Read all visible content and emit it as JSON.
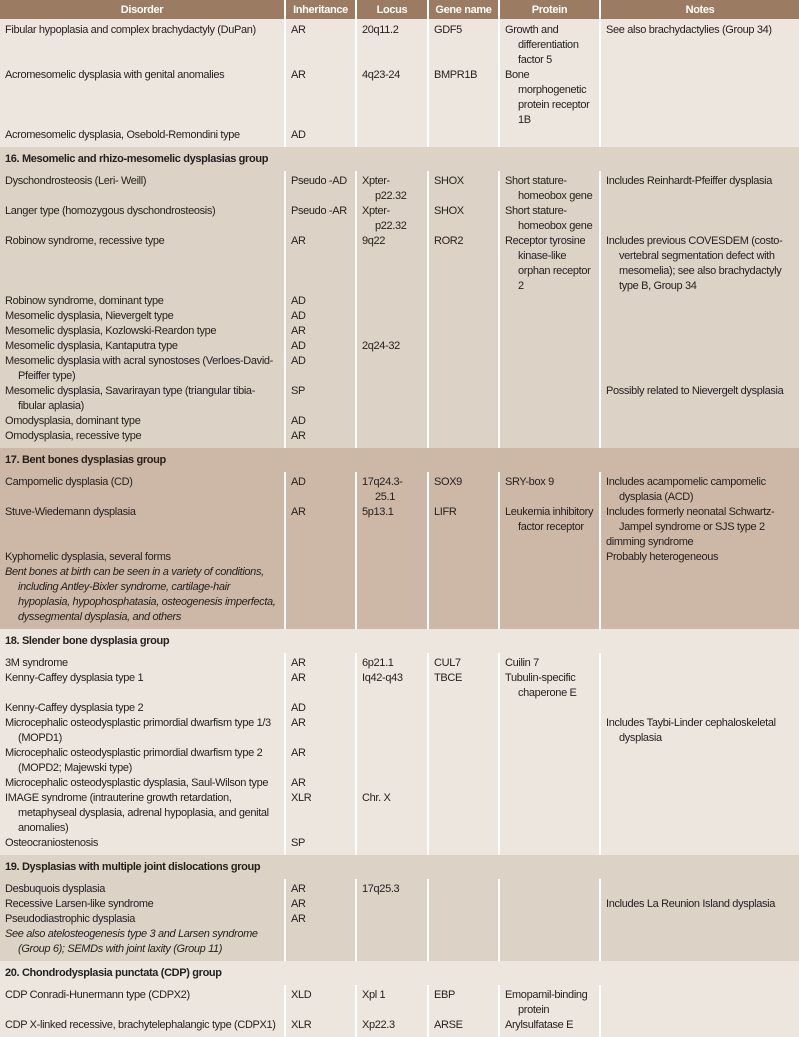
{
  "columns": [
    "Disorder",
    "Inheritance",
    "Locus",
    "Gene name",
    "Protein",
    "Notes"
  ],
  "colors": {
    "header": "#9b7b62",
    "light": "#ede6df",
    "mid": "#ddd2c6",
    "dark": "#cdb8a8"
  },
  "sections": [
    {
      "title": "",
      "shade": "light",
      "rows": [
        {
          "disorder": "Fibular hypoplasia and complex brachydactyly (DuPan)",
          "inheritance": "AR",
          "locus": "20q11.2",
          "gene": "GDF5",
          "protein": "Growth and differentiation factor 5",
          "notes": "See also brachydactylies (Group 34)"
        },
        {
          "disorder": "Acromesomelic dysplasia with genital anomalies",
          "inheritance": "AR",
          "locus": "4q23-24",
          "gene": "BMPR1B",
          "protein": "Bone morphogenetic protein receptor 1B",
          "notes": ""
        },
        {
          "disorder": "Acromesomelic dysplasia, Osebold-Remondini type",
          "inheritance": "AD",
          "locus": "",
          "gene": "",
          "protein": "",
          "notes": ""
        }
      ]
    },
    {
      "title": "16. Mesomelic and rhizo-mesomelic dysplasias group",
      "shade": "mid",
      "rows": [
        {
          "disorder": "Dyschondrosteosis (Leri- Weill)",
          "inheritance": "Pseudo -AD",
          "locus": "Xpter- p22.32",
          "gene": "SHOX",
          "protein": "Short stature- homeobox gene",
          "notes": "Includes Reinhardt-Pfeiffer dysplasia"
        },
        {
          "disorder": "Langer type (homozygous dyschondrosteosis)",
          "inheritance": "Pseudo -AR",
          "locus": "Xpter- p22.32",
          "gene": "SHOX",
          "protein": "Short stature- homeobox gene",
          "notes": ""
        },
        {
          "disorder": "Robinow syndrome, recessive type",
          "inheritance": "AR",
          "locus": "9q22",
          "gene": "ROR2",
          "protein": "Receptor tyrosine kinase-like orphan receptor 2",
          "notes": "Includes previous COVESDEM (costo-vertebral segmentation defect with mesomelia); see also brachydactyly type B, Group 34"
        },
        {
          "disorder": "Robinow syndrome, dominant type",
          "inheritance": "AD",
          "locus": "",
          "gene": "",
          "protein": "",
          "notes": ""
        },
        {
          "disorder": "Mesomelic dysplasia, Nievergelt type",
          "inheritance": "AD",
          "locus": "",
          "gene": "",
          "protein": "",
          "notes": ""
        },
        {
          "disorder": "Mesomelic dysplasia, Kozlowski-Reardon type",
          "inheritance": "AR",
          "locus": "",
          "gene": "",
          "protein": "",
          "notes": ""
        },
        {
          "disorder": "Mesomelic dysplasia, Kantaputra type",
          "inheritance": "AD",
          "locus": "2q24-32",
          "gene": "",
          "protein": "",
          "notes": ""
        },
        {
          "disorder": "Mesomelic dysplasia with acral synostoses (Verloes-David-Pfeiffer type)",
          "inheritance": "AD",
          "locus": "",
          "gene": "",
          "protein": "",
          "notes": ""
        },
        {
          "disorder": "Mesomelic dysplasia, Savarirayan type (triangular tibia-fibular aplasia)",
          "inheritance": "SP",
          "locus": "",
          "gene": "",
          "protein": "",
          "notes": "Possibly related to Nievergelt dysplasia"
        },
        {
          "disorder": "Omodysplasia, dominant type",
          "inheritance": "AD",
          "locus": "",
          "gene": "",
          "protein": "",
          "notes": ""
        },
        {
          "disorder": "Omodysplasia, recessive type",
          "inheritance": "AR",
          "locus": "",
          "gene": "",
          "protein": "",
          "notes": ""
        }
      ]
    },
    {
      "title": "17. Bent bones dysplasias group",
      "shade": "dark",
      "rows": [
        {
          "disorder": "Campomelic dysplasia (CD)",
          "inheritance": "AD",
          "locus": "17q24.3- 25.1",
          "gene": "SOX9",
          "protein": "SRY-box 9",
          "notes": "Includes acampomelic campomelic dysplasia (ACD)"
        },
        {
          "disorder": "Stuve-Wiedemann dysplasia",
          "inheritance": "AR",
          "locus": "5p13.1",
          "gene": "LIFR",
          "protein": "Leukemia inhibitory factor receptor",
          "notes": "Includes formerly neonatal Schwartz-Jampel syndrome or SJS type 2"
        },
        {
          "disorder": "",
          "inheritance": "",
          "locus": "",
          "gene": "",
          "protein": "",
          "notes": "dimming syndrome"
        },
        {
          "disorder": "Kyphomelic dysplasia, several forms",
          "inheritance": "",
          "locus": "",
          "gene": "",
          "protein": "",
          "notes": "Probably heterogeneous"
        },
        {
          "disorder": "Bent bones at birth can be seen in a variety of conditions, including Antley-Bixler syndrome, cartilage-hair hypoplasia, hypophosphatasia, osteogenesis imperfecta, dyssegmental dysplasia, and others",
          "inheritance": "",
          "locus": "",
          "gene": "",
          "protein": "",
          "notes": "",
          "italic": true
        }
      ]
    },
    {
      "title": "18. Slender bone dysplasia group",
      "shade": "light",
      "rows": [
        {
          "disorder": "3M syndrome",
          "inheritance": "AR",
          "locus": "6p21.1",
          "gene": "CUL7",
          "protein": "Cuilin 7",
          "notes": ""
        },
        {
          "disorder": "Kenny-Caffey dysplasia type 1",
          "inheritance": "AR",
          "locus": "Iq42-q43",
          "gene": "TBCE",
          "protein": "Tubulin-specific chaperone E",
          "notes": ""
        },
        {
          "disorder": "Kenny-Caffey dysplasia type 2",
          "inheritance": "AD",
          "locus": "",
          "gene": "",
          "protein": "",
          "notes": ""
        },
        {
          "disorder": "Microcephalic osteodysplastic primordial dwarfism type 1/3 (MOPD1)",
          "inheritance": "AR",
          "locus": "",
          "gene": "",
          "protein": "",
          "notes": "Includes Taybi-Linder cephaloskeletal dysplasia"
        },
        {
          "disorder": "Microcephalic osteodysplastic primordial dwarfism type 2 (MOPD2; Majewski type)",
          "inheritance": "AR",
          "locus": "",
          "gene": "",
          "protein": "",
          "notes": ""
        },
        {
          "disorder": "Microcephalic osteodysplastic dysplasia, Saul-Wilson type",
          "inheritance": "AR",
          "locus": "",
          "gene": "",
          "protein": "",
          "notes": ""
        },
        {
          "disorder": "IMAGE syndrome (intrauterine growth retardation, metaphyseal dysplasia, adrenal hypoplasia, and genital anomalies)",
          "inheritance": "XLR",
          "locus": "Chr. X",
          "gene": "",
          "protein": "",
          "notes": ""
        },
        {
          "disorder": "Osteocraniostenosis",
          "inheritance": "SP",
          "locus": "",
          "gene": "",
          "protein": "",
          "notes": ""
        }
      ]
    },
    {
      "title": "19. Dysplasias with multiple joint dislocations group",
      "shade": "mid",
      "rows": [
        {
          "disorder": "Desbuquois dysplasia",
          "inheritance": "AR",
          "locus": "17q25.3",
          "gene": "",
          "protein": "",
          "notes": ""
        },
        {
          "disorder": "Recessive Larsen-like syndrome",
          "inheritance": "AR",
          "locus": "",
          "gene": "",
          "protein": "",
          "notes": "Includes La Reunion Island dysplasia"
        },
        {
          "disorder": "Pseudodiastrophic dysplasia",
          "inheritance": "AR",
          "locus": "",
          "gene": "",
          "protein": "",
          "notes": ""
        },
        {
          "disorder": "See also atelosteogenesis type 3 and Larsen syndrome (Group 6); SEMDs with joint laxity (Group 11)",
          "inheritance": "",
          "locus": "",
          "gene": "",
          "protein": "",
          "notes": "",
          "italic": true
        }
      ]
    },
    {
      "title": "20. Chondrodysplasia punctata (CDP) group",
      "shade": "light",
      "rows": [
        {
          "disorder": "CDP Conradi-Hunermann type (CDPX2)",
          "inheritance": "XLD",
          "locus": "Xpl 1",
          "gene": "EBP",
          "protein": "Emopamil-binding protein",
          "notes": ""
        },
        {
          "disorder": "CDP X-linked recessive, brachytelephalangic type (CDPX1)",
          "inheritance": "XLR",
          "locus": "Xp22.3",
          "gene": "ARSE",
          "protein": "Arylsulfatase E",
          "notes": ""
        }
      ]
    }
  ]
}
